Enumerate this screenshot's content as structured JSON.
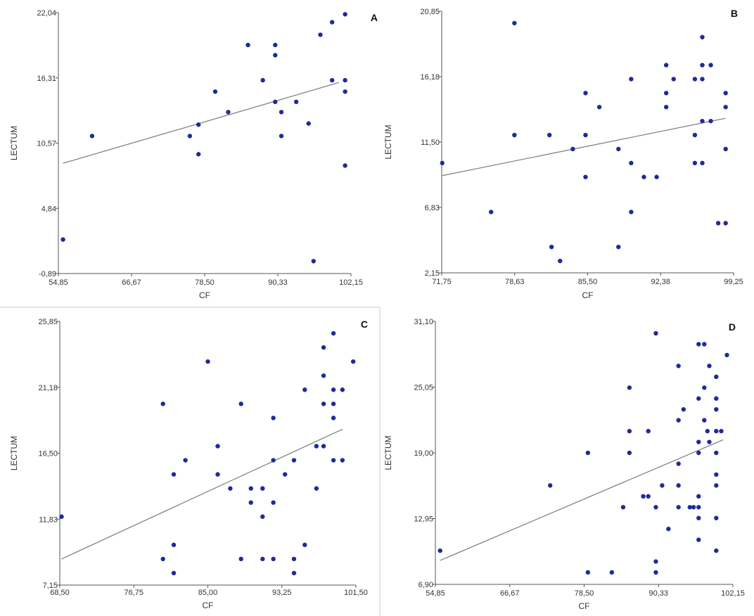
{
  "figure": {
    "chart_data": [
      {
        "type": "scatter",
        "panel": "A",
        "xlabel": "CF",
        "ylabel": "LECTUM",
        "xlim": [
          54.85,
          102.15
        ],
        "ylim": [
          -0.89,
          22.04
        ],
        "xticks": [
          "54,85",
          "66,67",
          "78,50",
          "90,33",
          "102,15"
        ],
        "yticks": [
          "-0,89",
          "4,84",
          "10,57",
          "16,31",
          "22,04"
        ],
        "fit_line": [
          [
            55.6,
            8.8
          ],
          [
            100.2,
            15.9
          ]
        ],
        "points": [
          [
            55.6,
            2.1
          ],
          [
            60.3,
            11.2
          ],
          [
            76.1,
            11.2
          ],
          [
            77.5,
            12.2
          ],
          [
            77.5,
            9.6
          ],
          [
            80.2,
            15.1
          ],
          [
            82.3,
            13.3
          ],
          [
            85.5,
            19.2
          ],
          [
            87.9,
            16.1
          ],
          [
            89.9,
            19.2
          ],
          [
            89.9,
            18.3
          ],
          [
            89.9,
            14.2
          ],
          [
            90.9,
            13.3
          ],
          [
            90.9,
            11.2
          ],
          [
            93.3,
            14.2
          ],
          [
            95.3,
            12.3
          ],
          [
            96.1,
            0.2
          ],
          [
            97.2,
            20.1
          ],
          [
            99.1,
            16.1
          ],
          [
            99.1,
            21.2
          ],
          [
            101.2,
            21.9
          ],
          [
            101.2,
            16.1
          ],
          [
            101.2,
            15.1
          ],
          [
            101.2,
            8.6
          ]
        ]
      },
      {
        "type": "scatter",
        "panel": "B",
        "xlabel": "CF",
        "ylabel": "LECTUM",
        "xlim": [
          71.75,
          99.25
        ],
        "ylim": [
          2.15,
          20.85
        ],
        "xticks": [
          "71,75",
          "78,63",
          "85,50",
          "92,38",
          "99,25"
        ],
        "yticks": [
          "2,15",
          "6,83",
          "11,50",
          "16,18",
          "20,85"
        ],
        "fit_line": [
          [
            71.8,
            9.1
          ],
          [
            98.5,
            13.2
          ]
        ],
        "points": [
          [
            71.8,
            10.0
          ],
          [
            76.4,
            6.5
          ],
          [
            78.6,
            20.0
          ],
          [
            78.6,
            12.0
          ],
          [
            81.9,
            12.0
          ],
          [
            82.1,
            4.0
          ],
          [
            82.9,
            3.0
          ],
          [
            84.1,
            11.0
          ],
          [
            85.3,
            15.0
          ],
          [
            85.3,
            12.0
          ],
          [
            85.3,
            9.0
          ],
          [
            86.6,
            14.0
          ],
          [
            88.4,
            11.0
          ],
          [
            88.4,
            4.0
          ],
          [
            89.6,
            16.0
          ],
          [
            89.6,
            10.0
          ],
          [
            89.6,
            6.5
          ],
          [
            90.8,
            9.0
          ],
          [
            92.0,
            9.0
          ],
          [
            92.9,
            17.0
          ],
          [
            92.9,
            15.0
          ],
          [
            92.9,
            14.0
          ],
          [
            93.6,
            16.0
          ],
          [
            95.6,
            16.0
          ],
          [
            95.6,
            12.0
          ],
          [
            95.6,
            10.0
          ],
          [
            96.3,
            19.0
          ],
          [
            96.3,
            17.0
          ],
          [
            96.3,
            16.0
          ],
          [
            96.3,
            13.0
          ],
          [
            96.3,
            10.0
          ],
          [
            97.1,
            17.0
          ],
          [
            97.1,
            13.0
          ],
          [
            97.8,
            5.7
          ],
          [
            98.5,
            15.0
          ],
          [
            98.5,
            14.0
          ],
          [
            98.5,
            11.0
          ],
          [
            98.5,
            5.7
          ]
        ]
      },
      {
        "type": "scatter",
        "panel": "C",
        "xlabel": "CF",
        "ylabel": "LECTUM",
        "xlim": [
          68.5,
          101.5
        ],
        "ylim": [
          7.15,
          25.85
        ],
        "xticks": [
          "68,50",
          "76,75",
          "85,00",
          "93,25",
          "101,50"
        ],
        "yticks": [
          "7,15",
          "11,83",
          "16,50",
          "21,18",
          "25,85"
        ],
        "fit_line": [
          [
            68.7,
            9.0
          ],
          [
            100.0,
            18.2
          ]
        ],
        "points": [
          [
            68.7,
            12.0
          ],
          [
            80.0,
            20.0
          ],
          [
            80.0,
            9.0
          ],
          [
            81.2,
            15.0
          ],
          [
            81.2,
            10.0
          ],
          [
            81.2,
            8.0
          ],
          [
            82.5,
            16.0
          ],
          [
            85.0,
            23.0
          ],
          [
            86.1,
            17.0
          ],
          [
            86.1,
            15.0
          ],
          [
            87.5,
            14.0
          ],
          [
            88.7,
            20.0
          ],
          [
            88.7,
            9.0
          ],
          [
            89.8,
            14.0
          ],
          [
            89.8,
            13.0
          ],
          [
            91.1,
            14.0
          ],
          [
            91.1,
            12.0
          ],
          [
            91.1,
            9.0
          ],
          [
            92.3,
            19.0
          ],
          [
            92.3,
            16.0
          ],
          [
            92.3,
            13.0
          ],
          [
            92.3,
            9.0
          ],
          [
            93.6,
            15.0
          ],
          [
            94.6,
            16.0
          ],
          [
            94.6,
            9.0
          ],
          [
            94.6,
            8.0
          ],
          [
            95.8,
            21.0
          ],
          [
            95.8,
            10.0
          ],
          [
            97.1,
            17.0
          ],
          [
            97.1,
            14.0
          ],
          [
            97.9,
            24.0
          ],
          [
            97.9,
            22.0
          ],
          [
            97.9,
            20.0
          ],
          [
            97.9,
            17.0
          ],
          [
            99.0,
            25.0
          ],
          [
            99.0,
            21.0
          ],
          [
            99.0,
            20.0
          ],
          [
            99.0,
            19.0
          ],
          [
            99.0,
            16.0
          ],
          [
            100.0,
            21.0
          ],
          [
            100.0,
            16.0
          ],
          [
            101.2,
            23.0
          ]
        ]
      },
      {
        "type": "scatter",
        "panel": "D",
        "xlabel": "CF",
        "ylabel": "LECTUM",
        "xlim": [
          54.85,
          102.15
        ],
        "ylim": [
          6.9,
          31.1
        ],
        "xticks": [
          "54,85",
          "66,67",
          "78,50",
          "90,33",
          "102,15"
        ],
        "yticks": [
          "6,90",
          "12,95",
          "19,00",
          "25,05",
          "31,10"
        ],
        "fit_line": [
          [
            55.6,
            9.1
          ],
          [
            100.6,
            20.2
          ]
        ],
        "points": [
          [
            55.6,
            10.0
          ],
          [
            73.1,
            16.0
          ],
          [
            79.1,
            19.0
          ],
          [
            79.1,
            8.0
          ],
          [
            82.9,
            8.0
          ],
          [
            84.7,
            14.0
          ],
          [
            85.7,
            25.0
          ],
          [
            85.7,
            21.0
          ],
          [
            85.7,
            19.0
          ],
          [
            87.9,
            15.0
          ],
          [
            88.7,
            15.0
          ],
          [
            88.7,
            21.0
          ],
          [
            89.9,
            30.0
          ],
          [
            89.9,
            14.0
          ],
          [
            89.9,
            9.0
          ],
          [
            89.9,
            8.0
          ],
          [
            90.9,
            16.0
          ],
          [
            91.9,
            12.0
          ],
          [
            93.5,
            27.0
          ],
          [
            93.5,
            22.0
          ],
          [
            93.5,
            18.0
          ],
          [
            93.5,
            16.0
          ],
          [
            93.5,
            14.0
          ],
          [
            94.3,
            23.0
          ],
          [
            95.3,
            14.0
          ],
          [
            95.9,
            14.0
          ],
          [
            96.7,
            29.0
          ],
          [
            96.7,
            24.0
          ],
          [
            96.7,
            20.0
          ],
          [
            96.7,
            19.0
          ],
          [
            96.7,
            15.0
          ],
          [
            96.7,
            14.0
          ],
          [
            96.7,
            13.0
          ],
          [
            96.7,
            11.0
          ],
          [
            97.6,
            29.0
          ],
          [
            97.6,
            25.0
          ],
          [
            97.6,
            22.0
          ],
          [
            98.1,
            21.0
          ],
          [
            98.4,
            27.0
          ],
          [
            98.4,
            20.0
          ],
          [
            99.5,
            26.0
          ],
          [
            99.5,
            24.0
          ],
          [
            99.5,
            23.0
          ],
          [
            99.5,
            21.0
          ],
          [
            99.5,
            19.0
          ],
          [
            99.5,
            17.0
          ],
          [
            99.5,
            16.0
          ],
          [
            99.5,
            13.0
          ],
          [
            99.5,
            10.0
          ],
          [
            100.3,
            21.0
          ],
          [
            101.2,
            28.0
          ]
        ]
      }
    ]
  },
  "colors": {
    "marker": "#1f2a9b",
    "fit_line": "#7a7a7a",
    "axis": "#555555",
    "separator": "#c8c8c8"
  }
}
